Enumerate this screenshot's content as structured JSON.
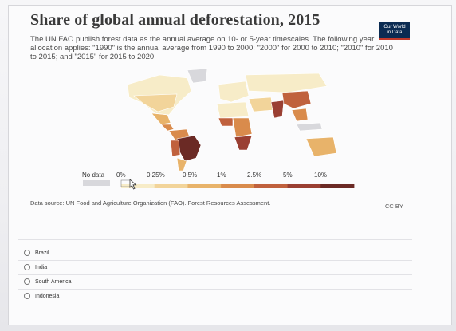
{
  "header": {
    "title": "Share of global annual deforestation, 2015",
    "logo_line1": "Our World",
    "logo_line2": "in Data",
    "subtitle": "The UN FAO publish forest data as the annual average on 10- or 5-year timescales. The following year allocation applies: \"1990\" is the annual average from 1990 to 2000; \"2000\" for 2000 to 2010; \"2010\" for 2010 to 2015; and \"2015\" for 2015 to 2020."
  },
  "legend": {
    "no_data_label": "No data",
    "ticks": [
      "0%",
      "0.25%",
      "0.5%",
      "1%",
      "2.5%",
      "5%",
      "10%"
    ],
    "colors": [
      "#f7ecc8",
      "#f2d49a",
      "#e8b36a",
      "#d98b4c",
      "#c0613d",
      "#9a3f32",
      "#6b2a25"
    ]
  },
  "source": "Data source: UN Food and Agriculture Organization (FAO). Forest Resources Assessment.",
  "license": "CC BY",
  "answer_options": [
    {
      "label": "Brazil"
    },
    {
      "label": "India"
    },
    {
      "label": "South America"
    },
    {
      "label": "Indonesia"
    }
  ],
  "colors": {
    "no_data": "#d8d8dc",
    "land_light": "#f7ecc8",
    "brazil": "#6b2a25",
    "accent_bar": "#c0392b"
  }
}
